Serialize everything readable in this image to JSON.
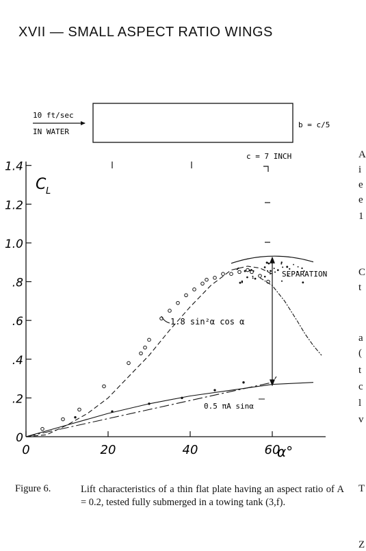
{
  "page": {
    "chapter_title": "XVII — SMALL ASPECT RATIO WINGS"
  },
  "figure": {
    "inset": {
      "flow_label_line1": "10 ft/sec",
      "flow_label_line2": "IN WATER",
      "span_label": "b = c/5",
      "chord_label": "c = 7 INCH"
    },
    "annotations": {
      "theory_curve_label": "1.8 sin²α cos α",
      "linear_label": "0.5 πA sinα",
      "separation_label": "SEPARATION"
    }
  },
  "caption": {
    "label": "Figure 6.",
    "text": "Lift characteristics of a thin flat plate having an aspect ratio of A = 0.2, tested fully submerged in a towing tank (3,f)."
  },
  "edge_fragments": [
    "A",
    "i",
    "e",
    "e",
    "1",
    "C",
    "t",
    "a",
    "(",
    "t",
    "c",
    "l",
    "v",
    "T",
    "Z"
  ],
  "chart_data": {
    "type": "scatter",
    "title": "",
    "xlabel": "α°",
    "ylabel": "C",
    "ylabel_sub": "L",
    "xlim": [
      0,
      73
    ],
    "ylim": [
      0,
      1.42
    ],
    "x_ticks": [
      0,
      20,
      40,
      60
    ],
    "x_tick_labels": [
      "0",
      "20",
      "40",
      "60"
    ],
    "y_ticks": [
      0,
      0.2,
      0.4,
      0.6,
      0.8,
      1.0,
      1.2,
      1.4
    ],
    "y_tick_labels": [
      "0",
      ".2",
      ".4",
      ".6",
      ".8",
      "1.0",
      "1.2",
      "1.4"
    ],
    "series": [
      {
        "kind": "points-open",
        "x": [
          4,
          9,
          13,
          19,
          25,
          28,
          29,
          30,
          33,
          35,
          37,
          39,
          41,
          43,
          44,
          46,
          48,
          50,
          52,
          54,
          55,
          57,
          59
        ],
        "y": [
          0.04,
          0.09,
          0.14,
          0.26,
          0.38,
          0.43,
          0.46,
          0.5,
          0.61,
          0.65,
          0.69,
          0.73,
          0.76,
          0.79,
          0.81,
          0.82,
          0.84,
          0.84,
          0.85,
          0.86,
          0.85,
          0.83,
          0.8
        ]
      },
      {
        "kind": "points-filled",
        "x": [
          12,
          21,
          30,
          38,
          46,
          53
        ],
        "y": [
          0.1,
          0.13,
          0.17,
          0.2,
          0.24,
          0.28
        ]
      },
      {
        "kind": "curve-dashed",
        "x": [
          0,
          5,
          10,
          15,
          20,
          25,
          30,
          35,
          40,
          45,
          50,
          54,
          57,
          60
        ],
        "y": [
          0,
          0.01,
          0.06,
          0.12,
          0.2,
          0.31,
          0.42,
          0.55,
          0.67,
          0.78,
          0.86,
          0.88,
          0.87,
          0.84
        ]
      },
      {
        "kind": "line-dashdot",
        "x": [
          0,
          60,
          61
        ],
        "y": [
          0,
          0.28,
          0.31
        ]
      },
      {
        "kind": "curve-solid",
        "x": [
          0,
          10,
          20,
          30,
          40,
          50,
          60,
          70
        ],
        "y": [
          0,
          0.06,
          0.12,
          0.17,
          0.21,
          0.24,
          0.27,
          0.28
        ]
      },
      {
        "kind": "wavy-decline",
        "x": [
          57,
          60,
          63,
          66,
          68,
          70,
          72
        ],
        "y": [
          0.82,
          0.78,
          0.7,
          0.6,
          0.53,
          0.47,
          0.42
        ]
      }
    ],
    "separation_band": {
      "x": [
        50,
        70
      ],
      "y_upper": 0.93,
      "y_lower": 0.78
    },
    "arrow": {
      "x": 60,
      "y_top": 0.93,
      "y_bottom": 0.26
    }
  }
}
